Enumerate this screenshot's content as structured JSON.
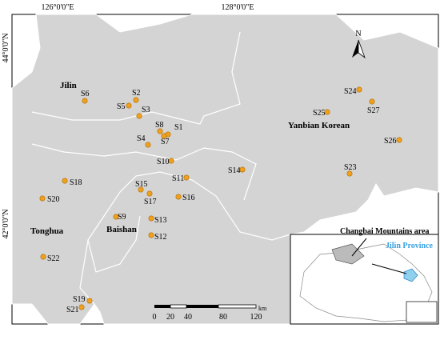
{
  "map": {
    "graticule": {
      "x_labels": [
        "126°0'0\"E",
        "128°0'0\"E"
      ],
      "y_labels": [
        "44°0'0\"N",
        "42°0'0\"N"
      ]
    },
    "regions": [
      "Jilin",
      "Yanbian Korean",
      "Tonghua",
      "Baishan"
    ],
    "sites": [
      "S1",
      "S2",
      "S3",
      "S4",
      "S5",
      "S6",
      "S7",
      "S8",
      "S9",
      "S10",
      "S11",
      "S12",
      "S13",
      "S14",
      "S15",
      "S16",
      "S17",
      "S18",
      "S19",
      "S20",
      "S21",
      "S22",
      "S23",
      "S24",
      "S25",
      "S26",
      "S27"
    ],
    "north": "N",
    "scale": {
      "ticks": [
        "0",
        "20",
        "40",
        "80",
        "120"
      ],
      "unit": "km"
    },
    "inset": {
      "title": "Changbai Mountains area",
      "label": "Jilin Province"
    }
  }
}
